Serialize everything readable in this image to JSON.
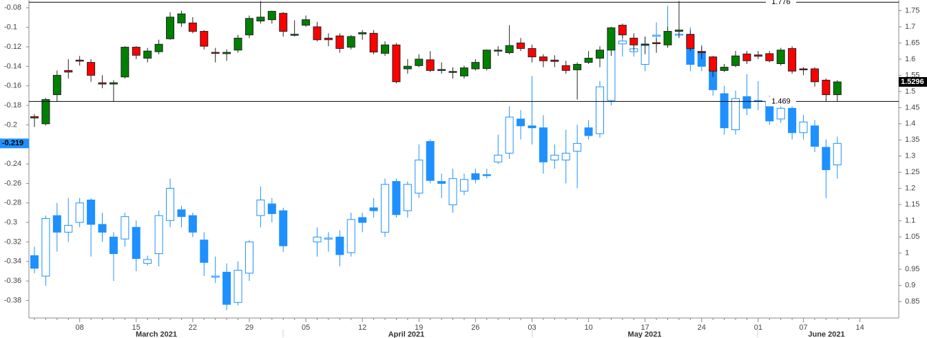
{
  "chart_data": {
    "type": "candlestick",
    "categories": [
      null,
      null,
      null,
      null,
      "08",
      null,
      null,
      null,
      null,
      "15",
      null,
      null,
      null,
      null,
      "22",
      null,
      null,
      null,
      null,
      "29",
      null,
      null,
      null,
      null,
      "05",
      null,
      null,
      null,
      null,
      "12",
      null,
      null,
      null,
      null,
      "19",
      null,
      null,
      null,
      null,
      "26",
      null,
      null,
      null,
      null,
      "03",
      null,
      null,
      null,
      null,
      "10",
      null,
      null,
      null,
      null,
      "17",
      null,
      null,
      null,
      null,
      "24",
      null,
      null,
      null,
      null,
      "01",
      null,
      null,
      null,
      "07",
      null,
      null,
      null,
      null,
      "14"
    ],
    "months": [
      "March 2021",
      "April 2021",
      "May 2021",
      "June 2021"
    ],
    "ylim": [
      -0.398,
      -0.072
    ],
    "yticks": [
      -0.08,
      -0.1,
      -0.12,
      -0.14,
      -0.16,
      -0.18,
      -0.2,
      -0.22,
      -0.24,
      -0.26,
      -0.28,
      -0.3,
      -0.32,
      -0.34,
      -0.36,
      -0.38
    ],
    "y2lim": [
      0.799,
      1.783
    ],
    "y2ticks": [
      0.85,
      0.9,
      0.95,
      1,
      1.05,
      1.1,
      1.15,
      1.2,
      1.25,
      1.3,
      1.35,
      1.4,
      1.45,
      1.5,
      1.55,
      1.6,
      1.65,
      1.7,
      1.75
    ],
    "hlines": [
      1.776,
      1.469
    ],
    "series": [
      {
        "axis": "y",
        "color": "#1e90ff",
        "hollow_up": true,
        "open": [
          -0.334,
          -0.355,
          -0.293,
          -0.31,
          -0.3,
          -0.277,
          -0.302,
          -0.315,
          -0.317,
          -0.305,
          -0.342,
          -0.332,
          -0.298,
          -0.287,
          -0.293,
          -0.318,
          -0.356,
          -0.351,
          -0.382,
          -0.352,
          -0.293,
          -0.281,
          -0.288,
          null,
          null,
          -0.32,
          -0.317,
          -0.315,
          -0.331,
          -0.295,
          -0.285,
          -0.31,
          -0.258,
          -0.288,
          -0.27,
          -0.217,
          -0.258,
          -0.282,
          -0.268,
          -0.25,
          -0.251,
          -0.238,
          -0.229,
          -0.194,
          -0.201,
          -0.203,
          -0.236,
          -0.236,
          -0.227,
          -0.203,
          -0.209,
          -0.175,
          -0.117,
          -0.125,
          -0.138,
          -0.109,
          -0.107,
          -0.108,
          -0.107,
          -0.126,
          -0.143,
          -0.168,
          -0.205,
          -0.171,
          -0.175,
          -0.177,
          -0.194,
          -0.183,
          -0.208,
          -0.201,
          -0.223,
          -0.241,
          null,
          null
        ],
        "high": [
          -0.325,
          -0.293,
          -0.28,
          -0.275,
          -0.275,
          -0.275,
          -0.29,
          -0.31,
          -0.29,
          -0.298,
          -0.334,
          -0.288,
          -0.255,
          -0.283,
          -0.29,
          -0.31,
          -0.335,
          -0.342,
          -0.34,
          -0.318,
          -0.263,
          -0.275,
          -0.285,
          null,
          null,
          -0.305,
          -0.31,
          -0.308,
          -0.29,
          -0.29,
          -0.275,
          -0.255,
          -0.255,
          -0.258,
          -0.22,
          -0.215,
          -0.25,
          -0.245,
          -0.25,
          -0.245,
          -0.245,
          -0.21,
          -0.181,
          -0.185,
          -0.15,
          -0.19,
          -0.22,
          -0.205,
          -0.2,
          -0.195,
          -0.155,
          -0.108,
          -0.108,
          -0.11,
          -0.11,
          -0.095,
          -0.078,
          -0.1,
          -0.1,
          -0.118,
          -0.138,
          -0.16,
          -0.165,
          -0.148,
          -0.155,
          -0.17,
          -0.172,
          -0.175,
          -0.19,
          -0.195,
          -0.215,
          -0.212,
          null,
          null
        ],
        "low": [
          -0.352,
          -0.365,
          -0.33,
          -0.32,
          -0.305,
          -0.335,
          -0.32,
          -0.36,
          -0.325,
          -0.35,
          -0.344,
          -0.345,
          -0.305,
          -0.305,
          -0.315,
          -0.355,
          -0.362,
          -0.39,
          -0.385,
          -0.36,
          -0.305,
          -0.3,
          -0.33,
          null,
          null,
          -0.335,
          -0.33,
          -0.345,
          -0.335,
          -0.31,
          -0.295,
          -0.315,
          -0.295,
          -0.295,
          -0.275,
          -0.26,
          -0.275,
          -0.29,
          -0.272,
          -0.26,
          -0.255,
          -0.24,
          -0.235,
          -0.215,
          -0.22,
          -0.25,
          -0.245,
          -0.26,
          -0.265,
          -0.215,
          -0.213,
          -0.18,
          -0.13,
          -0.13,
          -0.145,
          -0.12,
          -0.11,
          -0.11,
          -0.145,
          -0.145,
          -0.17,
          -0.21,
          -0.21,
          -0.19,
          -0.185,
          -0.2,
          -0.198,
          -0.215,
          -0.215,
          -0.228,
          -0.275,
          -0.255,
          null,
          null
        ],
        "close": [
          -0.347,
          -0.296,
          -0.31,
          -0.303,
          -0.28,
          -0.302,
          -0.31,
          -0.332,
          -0.294,
          -0.337,
          -0.338,
          -0.293,
          -0.265,
          -0.294,
          -0.31,
          -0.341,
          -0.355,
          -0.384,
          -0.349,
          -0.32,
          -0.277,
          -0.291,
          -0.324,
          null,
          null,
          -0.315,
          -0.316,
          -0.333,
          -0.297,
          -0.3,
          -0.288,
          -0.261,
          -0.292,
          -0.261,
          -0.236,
          -0.257,
          -0.26,
          -0.255,
          -0.256,
          -0.256,
          -0.252,
          -0.231,
          -0.192,
          -0.201,
          -0.203,
          -0.238,
          -0.231,
          -0.229,
          -0.219,
          -0.211,
          -0.161,
          -0.114,
          -0.114,
          -0.122,
          -0.117,
          -0.108,
          -0.108,
          -0.107,
          -0.138,
          -0.14,
          -0.164,
          -0.203,
          -0.173,
          -0.183,
          -0.176,
          -0.196,
          -0.183,
          -0.208,
          -0.197,
          -0.222,
          -0.246,
          -0.219,
          null,
          null
        ]
      },
      {
        "axis": "y2",
        "up_color": "#008000",
        "down_color": "#ff0000",
        "open": [
          1.422,
          1.4,
          1.49,
          1.565,
          1.597,
          1.59,
          1.527,
          1.523,
          1.545,
          1.637,
          1.603,
          1.623,
          1.663,
          1.712,
          1.712,
          1.686,
          1.621,
          1.617,
          1.628,
          1.675,
          1.718,
          1.722,
          1.742,
          1.674,
          1.705,
          1.7,
          1.665,
          1.672,
          1.637,
          1.678,
          1.68,
          1.618,
          1.644,
          1.57,
          1.58,
          1.598,
          1.566,
          1.56,
          1.548,
          1.57,
          1.571,
          1.627,
          1.62,
          1.65,
          1.633,
          1.607,
          1.597,
          1.58,
          1.567,
          1.59,
          1.603,
          1.628,
          1.705,
          1.665,
          1.643,
          1.651,
          1.644,
          1.686,
          1.676,
          1.624,
          1.607,
          1.565,
          1.58,
          1.616,
          1.613,
          1.617,
          1.586,
          1.633,
          1.57,
          1.57,
          1.535,
          1.49,
          null,
          null
        ],
        "high": [
          1.43,
          1.48,
          1.565,
          1.6,
          1.61,
          1.6,
          1.55,
          1.535,
          1.64,
          1.64,
          1.635,
          1.66,
          1.745,
          1.75,
          1.73,
          1.69,
          1.635,
          1.63,
          1.675,
          1.735,
          1.78,
          1.75,
          1.745,
          1.72,
          1.735,
          1.715,
          1.68,
          1.68,
          1.675,
          1.69,
          1.69,
          1.655,
          1.65,
          1.6,
          1.615,
          1.625,
          1.59,
          1.575,
          1.58,
          1.6,
          1.63,
          1.64,
          1.705,
          1.665,
          1.645,
          1.615,
          1.612,
          1.595,
          1.59,
          1.625,
          1.64,
          1.7,
          1.71,
          1.68,
          1.67,
          1.665,
          1.7,
          1.78,
          1.69,
          1.64,
          1.61,
          1.585,
          1.625,
          1.625,
          1.625,
          1.625,
          1.635,
          1.64,
          1.575,
          1.575,
          1.54,
          1.535,
          null,
          null
        ],
        "low": [
          1.39,
          1.395,
          1.47,
          1.54,
          1.58,
          1.53,
          1.51,
          1.47,
          1.54,
          1.6,
          1.59,
          1.615,
          1.66,
          1.7,
          1.68,
          1.63,
          1.59,
          1.595,
          1.62,
          1.665,
          1.71,
          1.71,
          1.67,
          1.67,
          1.7,
          1.655,
          1.64,
          1.62,
          1.63,
          1.66,
          1.615,
          1.61,
          1.525,
          1.555,
          1.575,
          1.56,
          1.555,
          1.54,
          1.54,
          1.565,
          1.565,
          1.61,
          1.615,
          1.625,
          1.59,
          1.575,
          1.575,
          1.555,
          1.475,
          1.585,
          1.575,
          1.61,
          1.665,
          1.625,
          1.615,
          1.62,
          1.635,
          1.665,
          1.625,
          1.6,
          1.545,
          1.56,
          1.575,
          1.585,
          1.6,
          1.59,
          1.58,
          1.555,
          1.55,
          1.515,
          1.47,
          1.47,
          null,
          null
        ],
        "close": [
          1.418,
          1.475,
          1.55,
          1.56,
          1.595,
          1.55,
          1.523,
          1.527,
          1.637,
          1.612,
          1.625,
          1.646,
          1.73,
          1.74,
          1.686,
          1.64,
          1.619,
          1.621,
          1.665,
          1.726,
          1.73,
          1.748,
          1.686,
          1.677,
          1.722,
          1.66,
          1.66,
          1.633,
          1.67,
          1.682,
          1.622,
          1.644,
          1.53,
          1.578,
          1.6,
          1.565,
          1.568,
          1.562,
          1.573,
          1.59,
          1.628,
          1.628,
          1.642,
          1.633,
          1.607,
          1.595,
          1.593,
          1.565,
          1.584,
          1.603,
          1.628,
          1.697,
          1.675,
          1.644,
          1.646,
          1.648,
          1.686,
          1.69,
          1.633,
          1.62,
          1.563,
          1.575,
          1.61,
          1.595,
          1.609,
          1.595,
          1.628,
          1.563,
          1.568,
          1.53,
          1.49,
          1.5296,
          null,
          null
        ]
      }
    ]
  }
}
